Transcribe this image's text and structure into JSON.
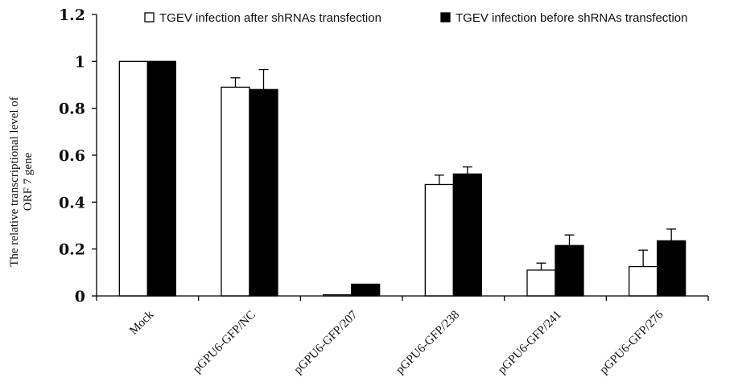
{
  "chart_data": {
    "type": "bar",
    "categories": [
      "Mock",
      "pGPU6-GFP/NC",
      "pGPU6-GFP/207",
      "pGPU6-GFP/238",
      "pGPU6-GFP/241",
      "pGPU6-GFP/276"
    ],
    "series": [
      {
        "name": "TGEV infection after shRNAs transfection",
        "color": "#ffffff",
        "values": [
          1.0,
          0.89,
          0.005,
          0.475,
          0.11,
          0.125
        ],
        "errors": [
          0.0,
          0.04,
          0.0,
          0.04,
          0.03,
          0.07
        ]
      },
      {
        "name": "TGEV infection before shRNAs transfection",
        "color": "#000000",
        "values": [
          1.0,
          0.88,
          0.05,
          0.52,
          0.215,
          0.235
        ],
        "errors": [
          0.0,
          0.085,
          0.0,
          0.03,
          0.045,
          0.05
        ]
      }
    ],
    "ylabel_lines": [
      "The relative transcriptional level of",
      "ORF 7 gene"
    ],
    "ylim": [
      0,
      1.2
    ],
    "yticks": [
      "0",
      "0.2",
      "0.4",
      "0.6",
      "0.8",
      "1",
      "1.2"
    ],
    "grid": false,
    "legend": "top"
  }
}
